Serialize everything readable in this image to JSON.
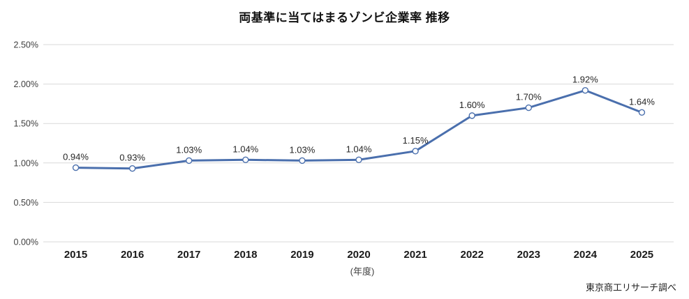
{
  "title": "両基準に当てはまるゾンビ企業率 推移",
  "source_note": "東京商工リサーチ調べ",
  "chart_data": {
    "type": "line",
    "title": "両基準に当てはまるゾンビ企業率 推移",
    "categories": [
      "2015",
      "2016",
      "2017",
      "2018",
      "2019",
      "2020",
      "2021",
      "2022",
      "2023",
      "2024",
      "2025"
    ],
    "series": [
      {
        "name": "両基準に当てはまるゾンビ企業率",
        "values": [
          0.94,
          0.93,
          1.03,
          1.04,
          1.03,
          1.04,
          1.15,
          1.6,
          1.7,
          1.92,
          1.64
        ],
        "data_labels": [
          "0.94%",
          "0.93%",
          "1.03%",
          "1.04%",
          "1.03%",
          "1.04%",
          "1.15%",
          "1.60%",
          "1.70%",
          "1.92%",
          "1.64%"
        ]
      }
    ],
    "xlabel": "(年度)",
    "ylabel": "",
    "ylim": [
      0,
      2.5
    ],
    "y_ticks": [
      {
        "value": 0.0,
        "label": "0.00%"
      },
      {
        "value": 0.5,
        "label": "0.50%"
      },
      {
        "value": 1.0,
        "label": "1.00%"
      },
      {
        "value": 1.5,
        "label": "1.50%"
      },
      {
        "value": 2.0,
        "label": "2.00%"
      },
      {
        "value": 2.5,
        "label": "2.50%"
      }
    ],
    "grid": true,
    "legend_position": "none",
    "colors": {
      "line": "#4a6fad",
      "marker_fill": "#ffffff",
      "gridline": "#d9d9d9",
      "axis_tick_text": "#3f3f3f",
      "category_text": "#1a1a1a",
      "data_label_text": "#262626"
    },
    "source": "東京商工リサーチ調べ"
  }
}
